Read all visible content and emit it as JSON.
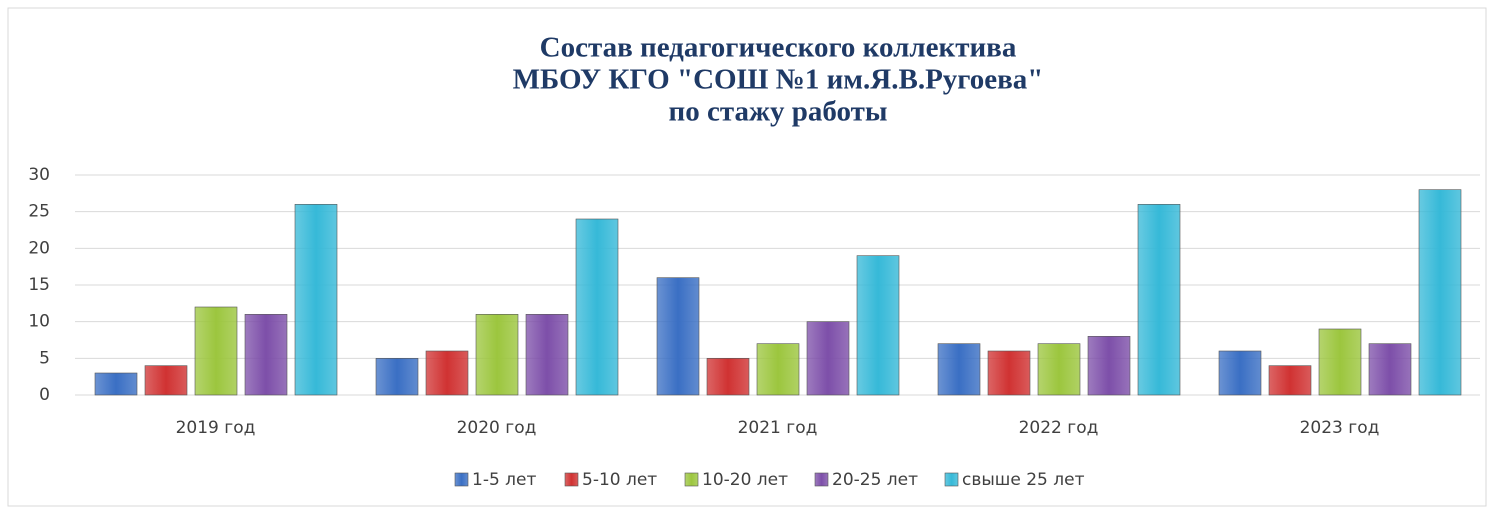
{
  "chart_data": {
    "type": "bar",
    "title": [
      "Состав педагогического коллектива",
      "МБОУ КГО \"СОШ №1 им.Я.В.Ругоева\"",
      "по стажу работы"
    ],
    "categories": [
      "2019 год",
      "2020 год",
      "2021 год",
      "2022 год",
      "2023 год"
    ],
    "series": [
      {
        "name": "1-5 лет",
        "color": "#3a6fc4",
        "values": [
          3,
          5,
          16,
          7,
          6
        ]
      },
      {
        "name": "5-10 лет",
        "color": "#d03232",
        "values": [
          4,
          6,
          5,
          6,
          4
        ]
      },
      {
        "name": "10-20 лет",
        "color": "#9cc63e",
        "values": [
          12,
          11,
          7,
          7,
          9
        ]
      },
      {
        "name": "20-25 лет",
        "color": "#7d4fa9",
        "values": [
          11,
          11,
          10,
          8,
          7
        ]
      },
      {
        "name": "свыше 25 лет",
        "color": "#36b9d8",
        "values": [
          26,
          24,
          19,
          26,
          28
        ]
      }
    ],
    "ylim": [
      0,
      30
    ],
    "yticks": [
      0,
      5,
      10,
      15,
      20,
      25,
      30
    ],
    "grid": true,
    "legend": "bottom"
  }
}
